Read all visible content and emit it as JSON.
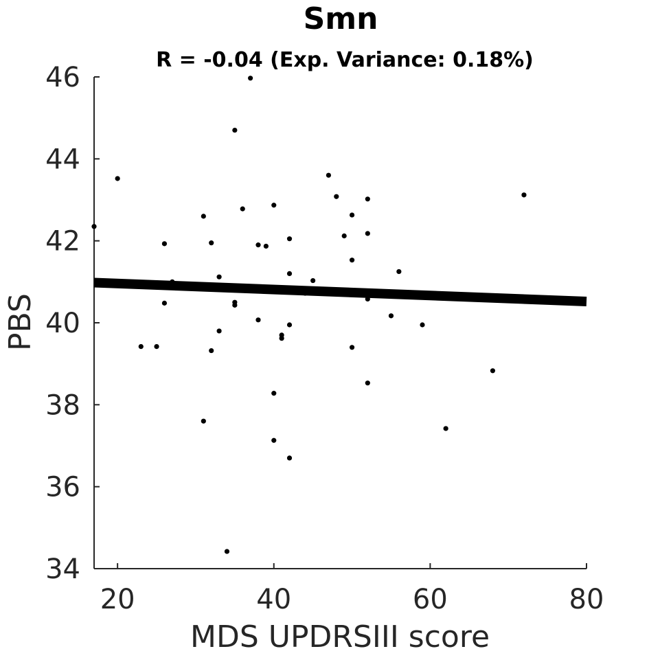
{
  "chart_data": {
    "type": "scatter",
    "title": "Smn",
    "subtitle": "R = -0.04 (Exp. Variance: 0.18%)",
    "xlabel": "MDS UPDRSIII score",
    "ylabel": "PBS",
    "xlim": [
      17,
      80
    ],
    "ylim": [
      34,
      46
    ],
    "xticks": [
      20,
      40,
      60,
      80
    ],
    "yticks": [
      34,
      36,
      38,
      40,
      42,
      44,
      46
    ],
    "grid": false,
    "axes_box": false,
    "point_color": "#000000",
    "axis_color": "#262626",
    "points": [
      {
        "x": 17,
        "y": 42.35
      },
      {
        "x": 20,
        "y": 43.52
      },
      {
        "x": 23,
        "y": 39.42
      },
      {
        "x": 25,
        "y": 39.42
      },
      {
        "x": 26,
        "y": 41.93
      },
      {
        "x": 26,
        "y": 40.48
      },
      {
        "x": 27,
        "y": 41.0
      },
      {
        "x": 31,
        "y": 42.6
      },
      {
        "x": 31,
        "y": 37.6
      },
      {
        "x": 32,
        "y": 41.95
      },
      {
        "x": 32,
        "y": 39.32
      },
      {
        "x": 33,
        "y": 41.12
      },
      {
        "x": 33,
        "y": 40.92
      },
      {
        "x": 33,
        "y": 39.8
      },
      {
        "x": 34,
        "y": 34.42
      },
      {
        "x": 35,
        "y": 44.7
      },
      {
        "x": 35,
        "y": 40.5
      },
      {
        "x": 35,
        "y": 40.43
      },
      {
        "x": 36,
        "y": 42.78
      },
      {
        "x": 37,
        "y": 45.97
      },
      {
        "x": 38,
        "y": 41.9
      },
      {
        "x": 38,
        "y": 40.07
      },
      {
        "x": 39,
        "y": 41.87
      },
      {
        "x": 40,
        "y": 42.87
      },
      {
        "x": 40,
        "y": 38.28
      },
      {
        "x": 40,
        "y": 37.13
      },
      {
        "x": 41,
        "y": 39.7
      },
      {
        "x": 41,
        "y": 39.62
      },
      {
        "x": 42,
        "y": 42.05
      },
      {
        "x": 42,
        "y": 41.2
      },
      {
        "x": 42,
        "y": 39.95
      },
      {
        "x": 42,
        "y": 36.7
      },
      {
        "x": 44,
        "y": 40.72
      },
      {
        "x": 45,
        "y": 41.03
      },
      {
        "x": 47,
        "y": 43.6
      },
      {
        "x": 48,
        "y": 43.08
      },
      {
        "x": 49,
        "y": 42.12
      },
      {
        "x": 50,
        "y": 42.63
      },
      {
        "x": 50,
        "y": 41.53
      },
      {
        "x": 50,
        "y": 39.4
      },
      {
        "x": 52,
        "y": 43.02
      },
      {
        "x": 52,
        "y": 42.18
      },
      {
        "x": 52,
        "y": 40.58
      },
      {
        "x": 52,
        "y": 38.53
      },
      {
        "x": 55,
        "y": 40.17
      },
      {
        "x": 56,
        "y": 41.25
      },
      {
        "x": 59,
        "y": 39.95
      },
      {
        "x": 62,
        "y": 37.42
      },
      {
        "x": 68,
        "y": 38.83
      },
      {
        "x": 72,
        "y": 43.12
      }
    ],
    "fit_line": {
      "x": [
        17,
        80
      ],
      "y": [
        40.98,
        40.52
      ],
      "color": "#000000"
    }
  }
}
